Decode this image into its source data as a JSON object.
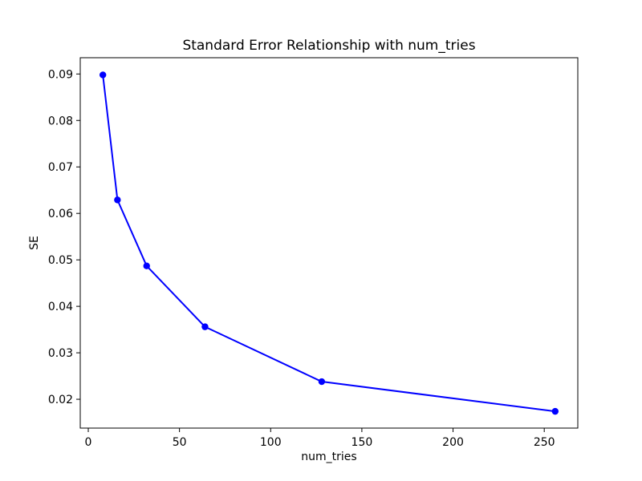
{
  "chart_data": {
    "type": "line",
    "title": "Standard Error Relationship with num_tries",
    "xlabel": "num_tries",
    "ylabel": "SE",
    "x": [
      8,
      16,
      32,
      64,
      128,
      256
    ],
    "series": [
      {
        "name": "SE",
        "values": [
          0.0898,
          0.0629,
          0.0487,
          0.0356,
          0.0238,
          0.0174
        ]
      }
    ],
    "xticks": [
      0,
      50,
      100,
      150,
      200,
      250
    ],
    "xtick_labels": [
      "0",
      "50",
      "100",
      "150",
      "200",
      "250"
    ],
    "yticks": [
      0.02,
      0.03,
      0.04,
      0.05,
      0.06,
      0.07,
      0.08,
      0.09
    ],
    "ytick_labels": [
      "0.02",
      "0.03",
      "0.04",
      "0.05",
      "0.06",
      "0.07",
      "0.08",
      "0.09"
    ],
    "xlim": [
      -4.4,
      268.4
    ],
    "ylim": [
      0.0138,
      0.0935
    ],
    "line_color": "#0000ff",
    "marker": "o",
    "grid": false,
    "legend_position": "none",
    "background_color": "#ffffff",
    "spine_color": "#000000"
  }
}
